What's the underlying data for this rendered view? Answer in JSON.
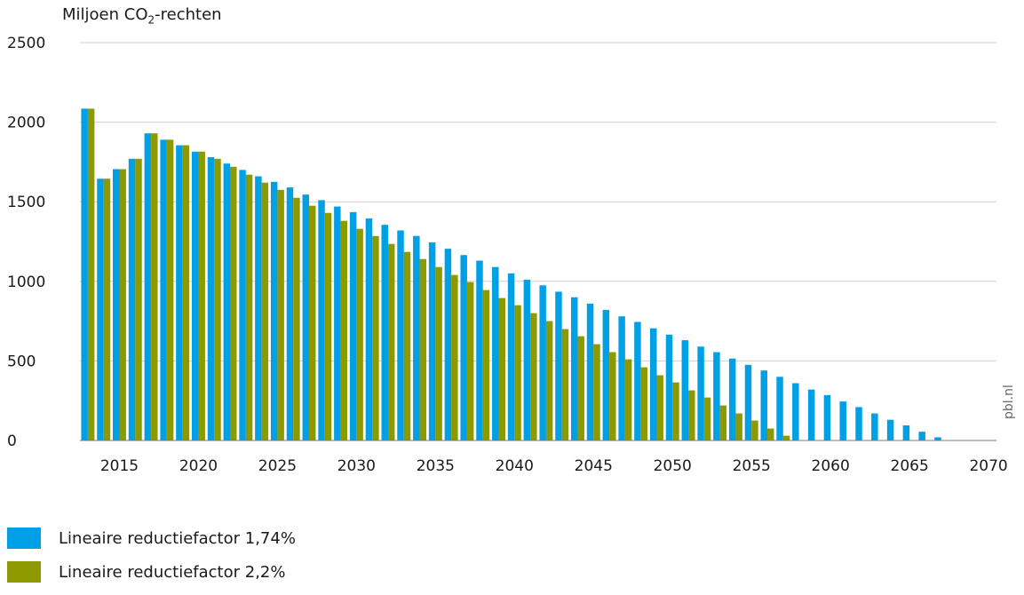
{
  "chart_data": {
    "type": "bar",
    "ylabel": "Miljoen CO",
    "ylabel_sub": "2",
    "ylabel_suffix": "-rechten",
    "ylim": [
      0,
      2500
    ],
    "yticks": [
      0,
      500,
      1000,
      1500,
      2000,
      2500
    ],
    "xlim": [
      2012.5,
      2070.5
    ],
    "xticks": [
      2015,
      2020,
      2025,
      2030,
      2035,
      2040,
      2045,
      2050,
      2055,
      2060,
      2065,
      2070
    ],
    "grid": "horizontal",
    "legend_position": "bottom-left",
    "categories": [
      2013,
      2014,
      2015,
      2016,
      2017,
      2018,
      2019,
      2020,
      2021,
      2022,
      2023,
      2024,
      2025,
      2026,
      2027,
      2028,
      2029,
      2030,
      2031,
      2032,
      2033,
      2034,
      2035,
      2036,
      2037,
      2038,
      2039,
      2040,
      2041,
      2042,
      2043,
      2044,
      2045,
      2046,
      2047,
      2048,
      2049,
      2050,
      2051,
      2052,
      2053,
      2054,
      2055,
      2056,
      2057,
      2058,
      2059,
      2060,
      2061,
      2062,
      2063,
      2064,
      2065,
      2066,
      2067
    ],
    "series": [
      {
        "name": "Lineaire reductiefactor 1,74%",
        "color": "#00a0e6",
        "values": [
          2085,
          1645,
          1705,
          1770,
          1930,
          1890,
          1855,
          1815,
          1780,
          1740,
          1700,
          1660,
          1625,
          1590,
          1545,
          1510,
          1470,
          1435,
          1395,
          1355,
          1320,
          1285,
          1245,
          1205,
          1165,
          1130,
          1090,
          1050,
          1010,
          975,
          935,
          900,
          860,
          820,
          780,
          745,
          705,
          665,
          630,
          590,
          555,
          515,
          475,
          440,
          400,
          360,
          320,
          285,
          245,
          210,
          170,
          130,
          95,
          55,
          20
        ]
      },
      {
        "name": "Lineaire reductiefactor 2,2%",
        "color": "#8c9a00",
        "values": [
          2085,
          1645,
          1705,
          1770,
          1930,
          1890,
          1855,
          1815,
          1770,
          1720,
          1670,
          1620,
          1575,
          1525,
          1475,
          1430,
          1380,
          1330,
          1285,
          1235,
          1185,
          1140,
          1090,
          1040,
          995,
          945,
          895,
          850,
          800,
          750,
          700,
          655,
          605,
          555,
          510,
          460,
          410,
          365,
          315,
          270,
          220,
          170,
          125,
          75,
          30,
          0,
          0,
          0,
          0,
          0,
          0,
          0,
          0,
          0,
          0
        ]
      }
    ]
  },
  "credit": "pbl.nl",
  "legend": [
    {
      "label": "Lineaire reductiefactor 1,74%",
      "color": "#00a0e6"
    },
    {
      "label": "Lineaire reductiefactor 2,2%",
      "color": "#8c9a00"
    }
  ]
}
